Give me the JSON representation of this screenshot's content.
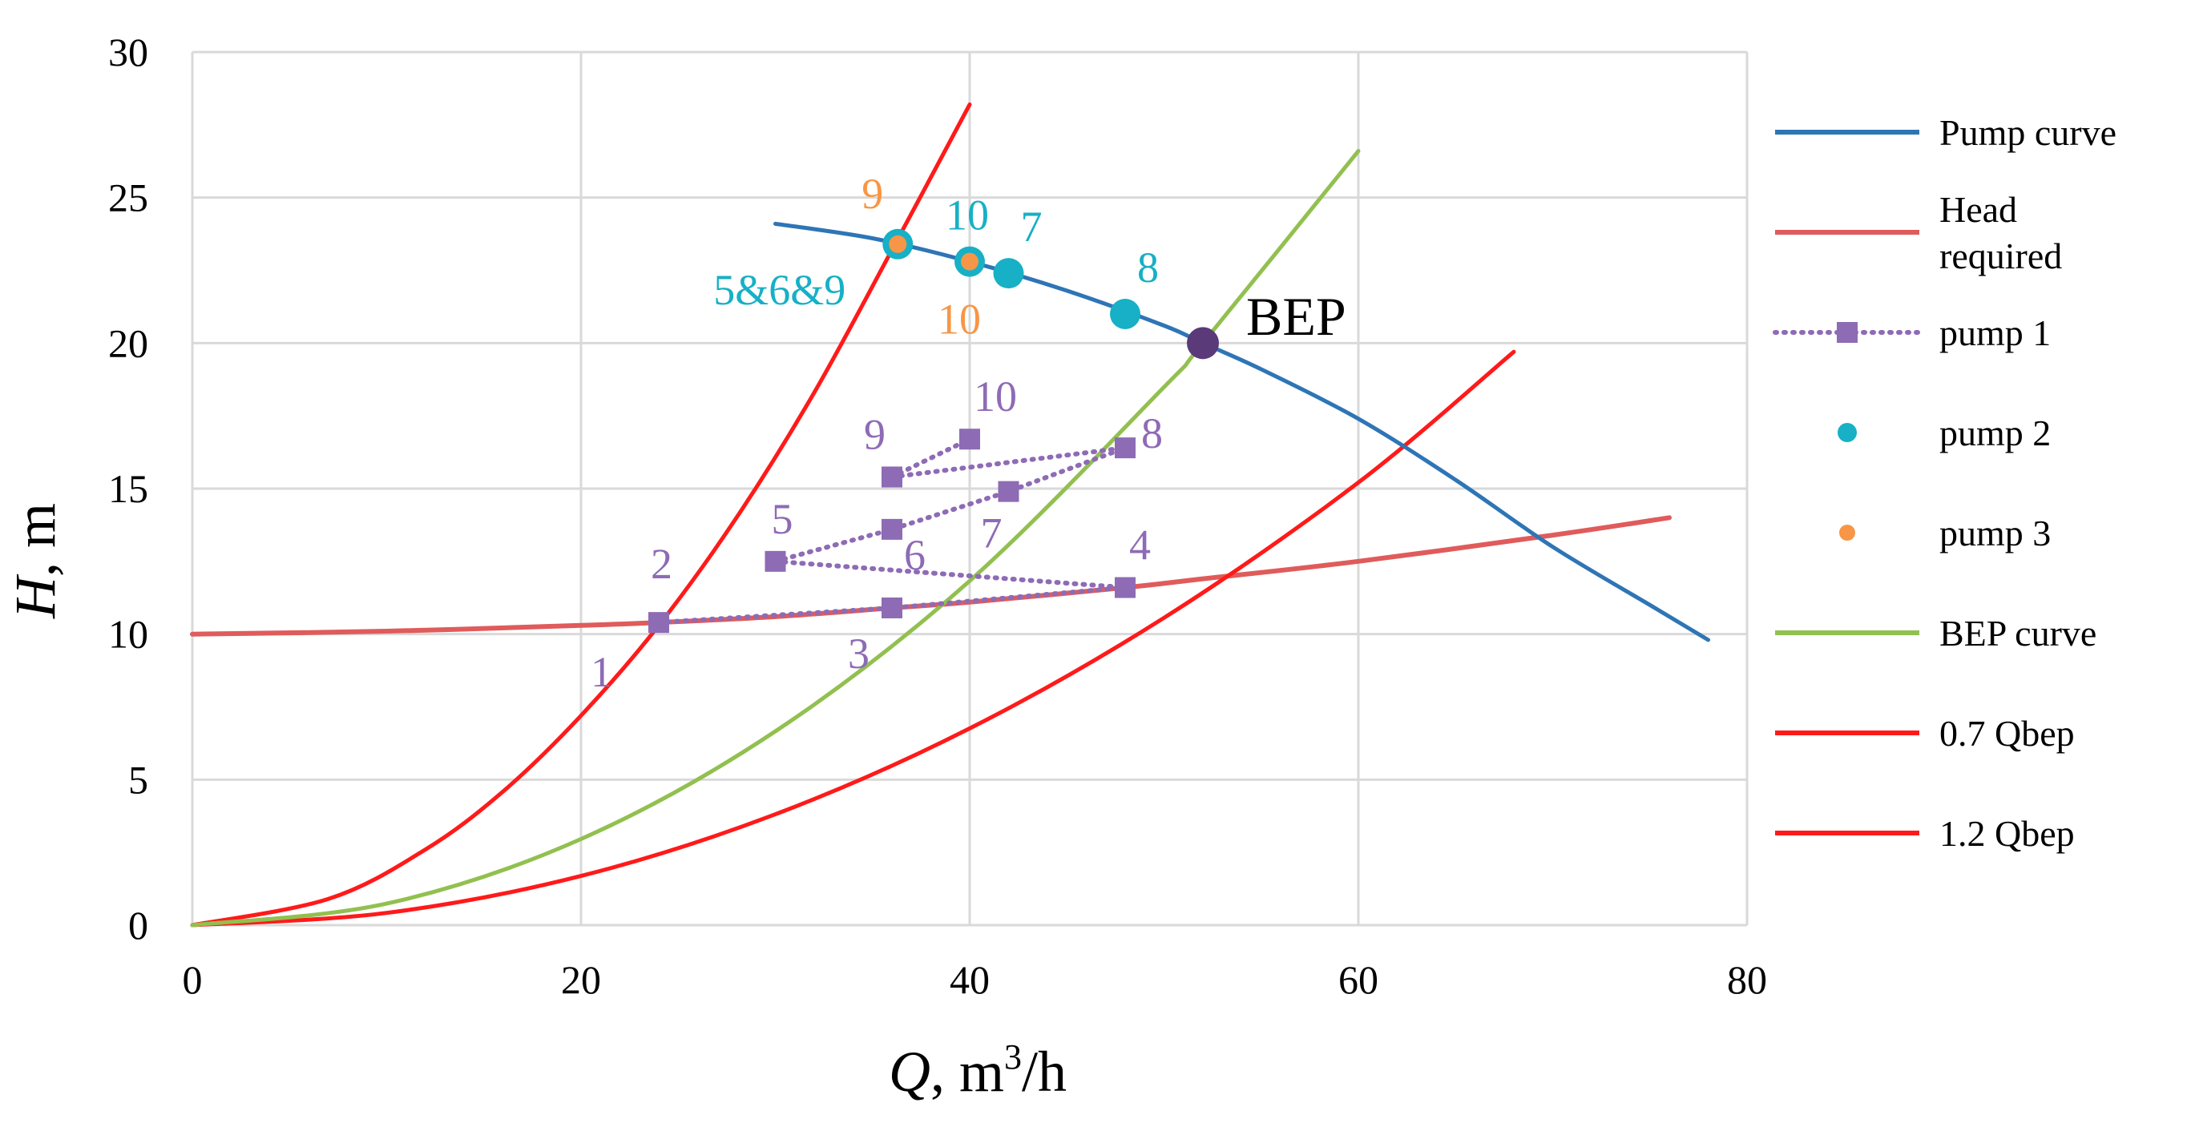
{
  "chart_data": {
    "type": "line",
    "title": "",
    "xlabel": "Q, m³/h",
    "xlabel_symbol": "Q",
    "xlabel_unit": ", m",
    "xlabel_sup": "3",
    "xlabel_tail": "/h",
    "ylabel": "H, m",
    "ylabel_symbol": "H",
    "ylabel_unit": ", m",
    "xlim": [
      0,
      80
    ],
    "ylim": [
      0,
      30
    ],
    "xticks": [
      "0",
      "20",
      "40",
      "60",
      "80"
    ],
    "yticks": [
      "0",
      "5",
      "10",
      "15",
      "20",
      "25",
      "30"
    ],
    "grid": true,
    "legend_position": "right",
    "colors": {
      "pump_curve": "#2e75b6",
      "head_required": "#e05b5b",
      "pump1": "#8e6bb5",
      "pump2": "#17b0c6",
      "pump3": "#f79646",
      "bep_curve": "#92c050",
      "q07": "#ff1a1a",
      "q12": "#ff1a1a",
      "bep_point": "#5a3a78",
      "grid": "#d9d9d9"
    },
    "series": [
      {
        "name": "Pump curve",
        "key": "pump_curve",
        "x": [
          30,
          35,
          40,
          45,
          50,
          52,
          55,
          60,
          65,
          70,
          75,
          78
        ],
        "y": [
          24.1,
          23.6,
          22.8,
          21.8,
          20.6,
          20.0,
          19.1,
          17.4,
          15.3,
          13.0,
          11.0,
          9.8
        ]
      },
      {
        "name": "Head required",
        "key": "head_required",
        "x": [
          0,
          10,
          20,
          24,
          30,
          36,
          40,
          48,
          52,
          60,
          70,
          76
        ],
        "y": [
          10,
          10.1,
          10.3,
          10.4,
          10.6,
          10.9,
          11.1,
          11.6,
          11.9,
          12.5,
          13.4,
          14.0
        ]
      },
      {
        "name": "pump 1",
        "key": "pump1",
        "x": [
          24,
          36,
          48,
          30,
          36,
          48,
          36,
          42,
          48,
          36,
          40
        ],
        "y": [
          10.4,
          10.9,
          11.6,
          12.5,
          13.6,
          11.6,
          15.4,
          14.9,
          16.4,
          15.4,
          16.7
        ]
      },
      {
        "name": "pump 2",
        "key": "pump2",
        "x": [
          36.3,
          40,
          42,
          48
        ],
        "y": [
          23.4,
          22.8,
          22.4,
          21.0
        ]
      },
      {
        "name": "pump 3",
        "key": "pump3",
        "x": [
          36.3,
          40
        ],
        "y": [
          23.4,
          22.8
        ]
      },
      {
        "name": "BEP curve",
        "key": "bep_curve",
        "x": [
          0,
          10,
          20,
          30,
          40,
          50,
          52,
          60
        ],
        "y": [
          0,
          0.74,
          2.96,
          6.66,
          11.83,
          18.49,
          20.0,
          26.6
        ]
      },
      {
        "name": "0.7 Qbep",
        "key": "q07",
        "x": [
          0,
          7,
          12,
          16,
          20,
          24,
          28,
          32,
          36,
          40
        ],
        "y": [
          0,
          0.9,
          2.6,
          4.6,
          7.2,
          10.3,
          14.0,
          18.3,
          23.2,
          28.2
        ]
      },
      {
        "name": "1.2 Qbep",
        "key": "q12",
        "x": [
          0,
          10,
          20,
          30,
          40,
          50,
          60,
          68
        ],
        "y": [
          0,
          0.42,
          1.69,
          3.81,
          6.76,
          10.56,
          15.21,
          19.7
        ]
      }
    ],
    "pump1_segments": [
      [
        [
          24,
          10.4
        ],
        [
          36,
          10.9
        ],
        [
          48,
          11.6
        ]
      ],
      [
        [
          30,
          12.5
        ],
        [
          36,
          13.6
        ],
        [
          42,
          14.9
        ],
        [
          48,
          16.4
        ]
      ],
      [
        [
          30,
          12.5
        ],
        [
          48,
          11.6
        ]
      ],
      [
        [
          36,
          15.4
        ],
        [
          48,
          16.4
        ]
      ],
      [
        [
          36,
          15.4
        ],
        [
          40,
          16.7
        ]
      ]
    ],
    "bep_point": {
      "x": 52,
      "y": 20,
      "label": "BEP"
    },
    "annotations": [
      {
        "text": "1",
        "x": 24,
        "y": 10.4,
        "series": "pump1",
        "dx": -85,
        "dy": 80
      },
      {
        "text": "2",
        "x": 24,
        "y": 10.4,
        "series": "pump1",
        "dx": -10,
        "dy": -55
      },
      {
        "text": "3",
        "x": 36,
        "y": 10.9,
        "series": "pump1",
        "dx": -55,
        "dy": 75
      },
      {
        "text": "4",
        "x": 48,
        "y": 11.6,
        "series": "pump1",
        "dx": 5,
        "dy": -35
      },
      {
        "text": "5",
        "x": 30,
        "y": 12.5,
        "series": "pump1",
        "dx": -5,
        "dy": -35
      },
      {
        "text": "6",
        "x": 36,
        "y": 13.6,
        "series": "pump1",
        "dx": 15,
        "dy": 50
      },
      {
        "text": "7",
        "x": 42,
        "y": 14.9,
        "series": "pump1",
        "dx": -35,
        "dy": 70
      },
      {
        "text": "8",
        "x": 48,
        "y": 16.4,
        "series": "pump1",
        "dx": 20,
        "dy": 0
      },
      {
        "text": "9",
        "x": 36,
        "y": 15.4,
        "series": "pump1",
        "dx": -35,
        "dy": -35
      },
      {
        "text": "10",
        "x": 40,
        "y": 16.7,
        "series": "pump1",
        "dx": 5,
        "dy": -35
      },
      {
        "text": "5&6&9",
        "x": 36.3,
        "y": 23.4,
        "series": "pump2",
        "dx": -230,
        "dy": 75
      },
      {
        "text": "10",
        "x": 40,
        "y": 22.8,
        "series": "pump2",
        "dx": -30,
        "dy": -40
      },
      {
        "text": "7",
        "x": 42,
        "y": 22.4,
        "series": "pump2",
        "dx": 15,
        "dy": -40
      },
      {
        "text": "8",
        "x": 48,
        "y": 21.0,
        "series": "pump2",
        "dx": 15,
        "dy": -40
      },
      {
        "text": "9",
        "x": 36.3,
        "y": 23.4,
        "series": "pump3",
        "dx": -45,
        "dy": -45
      },
      {
        "text": "10",
        "x": 40,
        "y": 22.8,
        "series": "pump3",
        "dx": -40,
        "dy": 90
      }
    ],
    "legend": [
      {
        "key": "pump_curve",
        "lines": [
          "Pump curve"
        ],
        "style": "line"
      },
      {
        "key": "head_required",
        "lines": [
          "Head",
          "required"
        ],
        "style": "line"
      },
      {
        "key": "pump1",
        "lines": [
          "pump 1"
        ],
        "style": "dotted-square"
      },
      {
        "key": "pump2",
        "lines": [
          "pump 2"
        ],
        "style": "dot"
      },
      {
        "key": "pump3",
        "lines": [
          "pump 3"
        ],
        "style": "dot-small"
      },
      {
        "key": "bep_curve",
        "lines": [
          "BEP curve"
        ],
        "style": "line"
      },
      {
        "key": "q07",
        "lines": [
          "0.7 Qbep"
        ],
        "style": "line"
      },
      {
        "key": "q12",
        "lines": [
          "1.2 Qbep"
        ],
        "style": "line"
      }
    ]
  }
}
